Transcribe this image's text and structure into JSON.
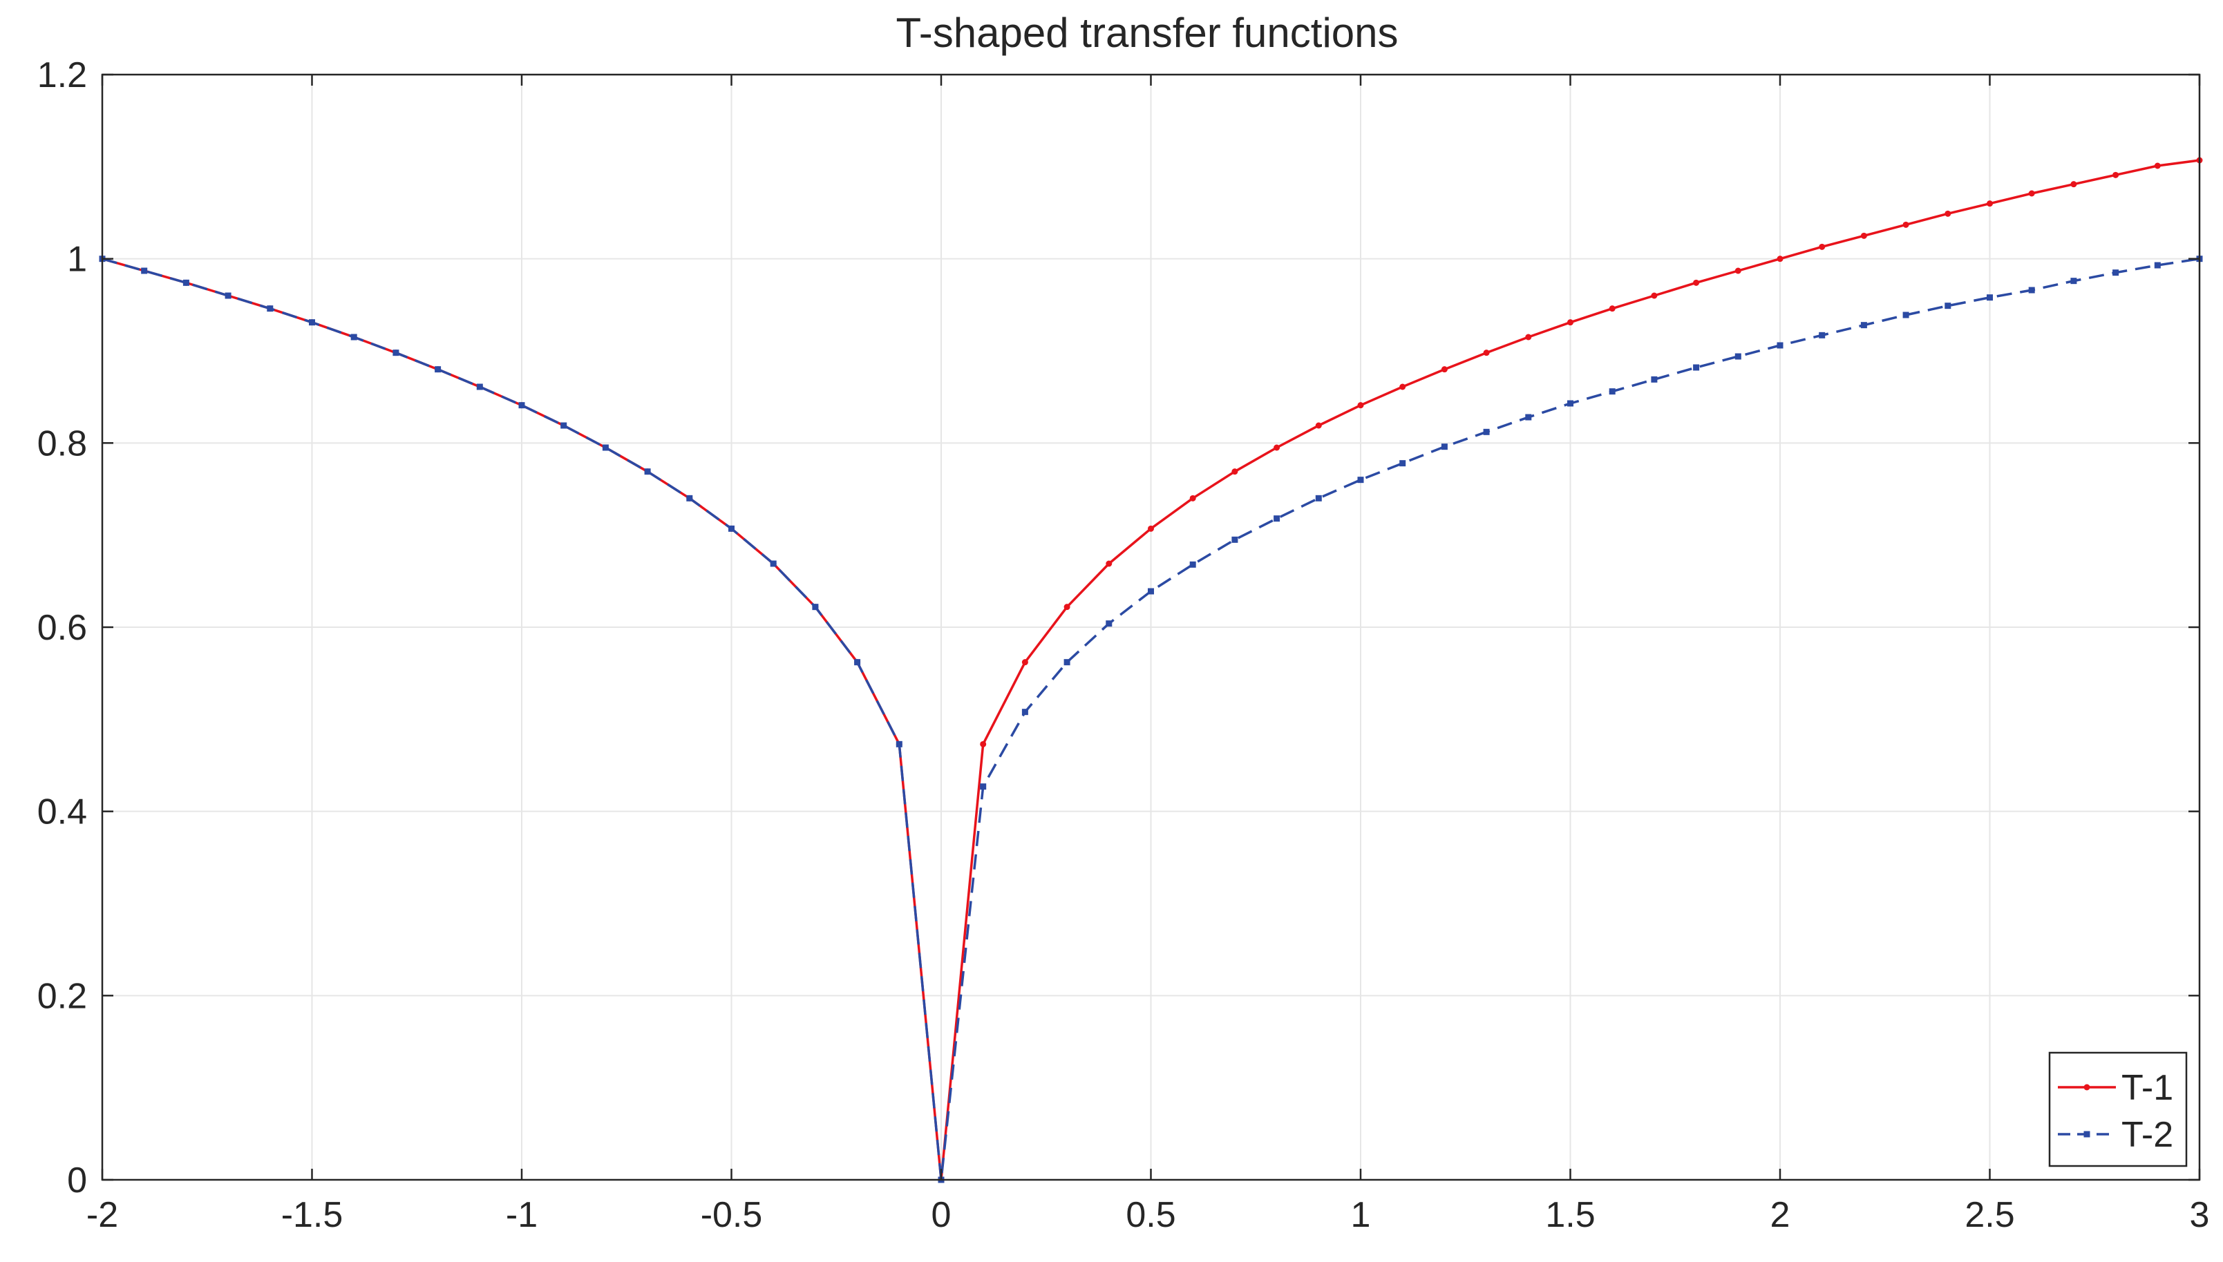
{
  "chart_data": {
    "type": "line",
    "title": "T-shaped transfer functions",
    "xlabel": "",
    "ylabel": "",
    "xlim": [
      -2,
      3
    ],
    "ylim": [
      0,
      1.2
    ],
    "x_ticks": [
      "-2",
      "-1.5",
      "-1",
      "-0.5",
      "0",
      "0.5",
      "1",
      "1.5",
      "2",
      "2.5",
      "3"
    ],
    "y_ticks": [
      "0",
      "0.2",
      "0.4",
      "0.6",
      "0.8",
      "1",
      "1.2"
    ],
    "grid": true,
    "legend_position": "bottom-right",
    "x": [
      -2.0,
      -1.9,
      -1.8,
      -1.7,
      -1.6,
      -1.5,
      -1.4,
      -1.3,
      -1.2,
      -1.1,
      -1.0,
      -0.9,
      -0.8,
      -0.7,
      -0.6,
      -0.5,
      -0.4,
      -0.3,
      -0.2,
      -0.1,
      0.0,
      0.1,
      0.2,
      0.3,
      0.4,
      0.5,
      0.6,
      0.7,
      0.8,
      0.9,
      1.0,
      1.1,
      1.2,
      1.3,
      1.4,
      1.5,
      1.6,
      1.7,
      1.8,
      1.9,
      2.0,
      2.1,
      2.2,
      2.3,
      2.4,
      2.5,
      2.6,
      2.7,
      2.8,
      2.9,
      3.0
    ],
    "series": [
      {
        "name": "T-1",
        "color": "#e8131b",
        "line_style": "solid",
        "marker": "dot",
        "values": [
          1.0,
          0.987,
          0.974,
          0.96,
          0.946,
          0.931,
          0.915,
          0.898,
          0.88,
          0.861,
          0.841,
          0.819,
          0.795,
          0.769,
          0.74,
          0.707,
          0.669,
          0.622,
          0.562,
          0.473,
          0.0,
          0.473,
          0.562,
          0.622,
          0.669,
          0.707,
          0.74,
          0.769,
          0.795,
          0.819,
          0.841,
          0.861,
          0.88,
          0.898,
          0.915,
          0.931,
          0.946,
          0.96,
          0.974,
          0.987,
          1.0,
          1.013,
          1.025,
          1.037,
          1.049,
          1.06,
          1.071,
          1.081,
          1.091,
          1.101,
          1.107
        ]
      },
      {
        "name": "T-2",
        "color": "#2b4aa3",
        "line_style": "dashed",
        "marker": "square",
        "values": [
          1.0,
          0.987,
          0.974,
          0.96,
          0.946,
          0.931,
          0.915,
          0.898,
          0.88,
          0.861,
          0.841,
          0.819,
          0.795,
          0.769,
          0.74,
          0.707,
          0.669,
          0.622,
          0.562,
          0.473,
          0.0,
          0.427,
          0.508,
          0.562,
          0.604,
          0.639,
          0.668,
          0.695,
          0.718,
          0.74,
          0.76,
          0.778,
          0.796,
          0.812,
          0.828,
          0.843,
          0.856,
          0.869,
          0.882,
          0.894,
          0.906,
          0.917,
          0.928,
          0.939,
          0.949,
          0.958,
          0.966,
          0.976,
          0.985,
          0.993,
          1.0
        ]
      }
    ]
  }
}
